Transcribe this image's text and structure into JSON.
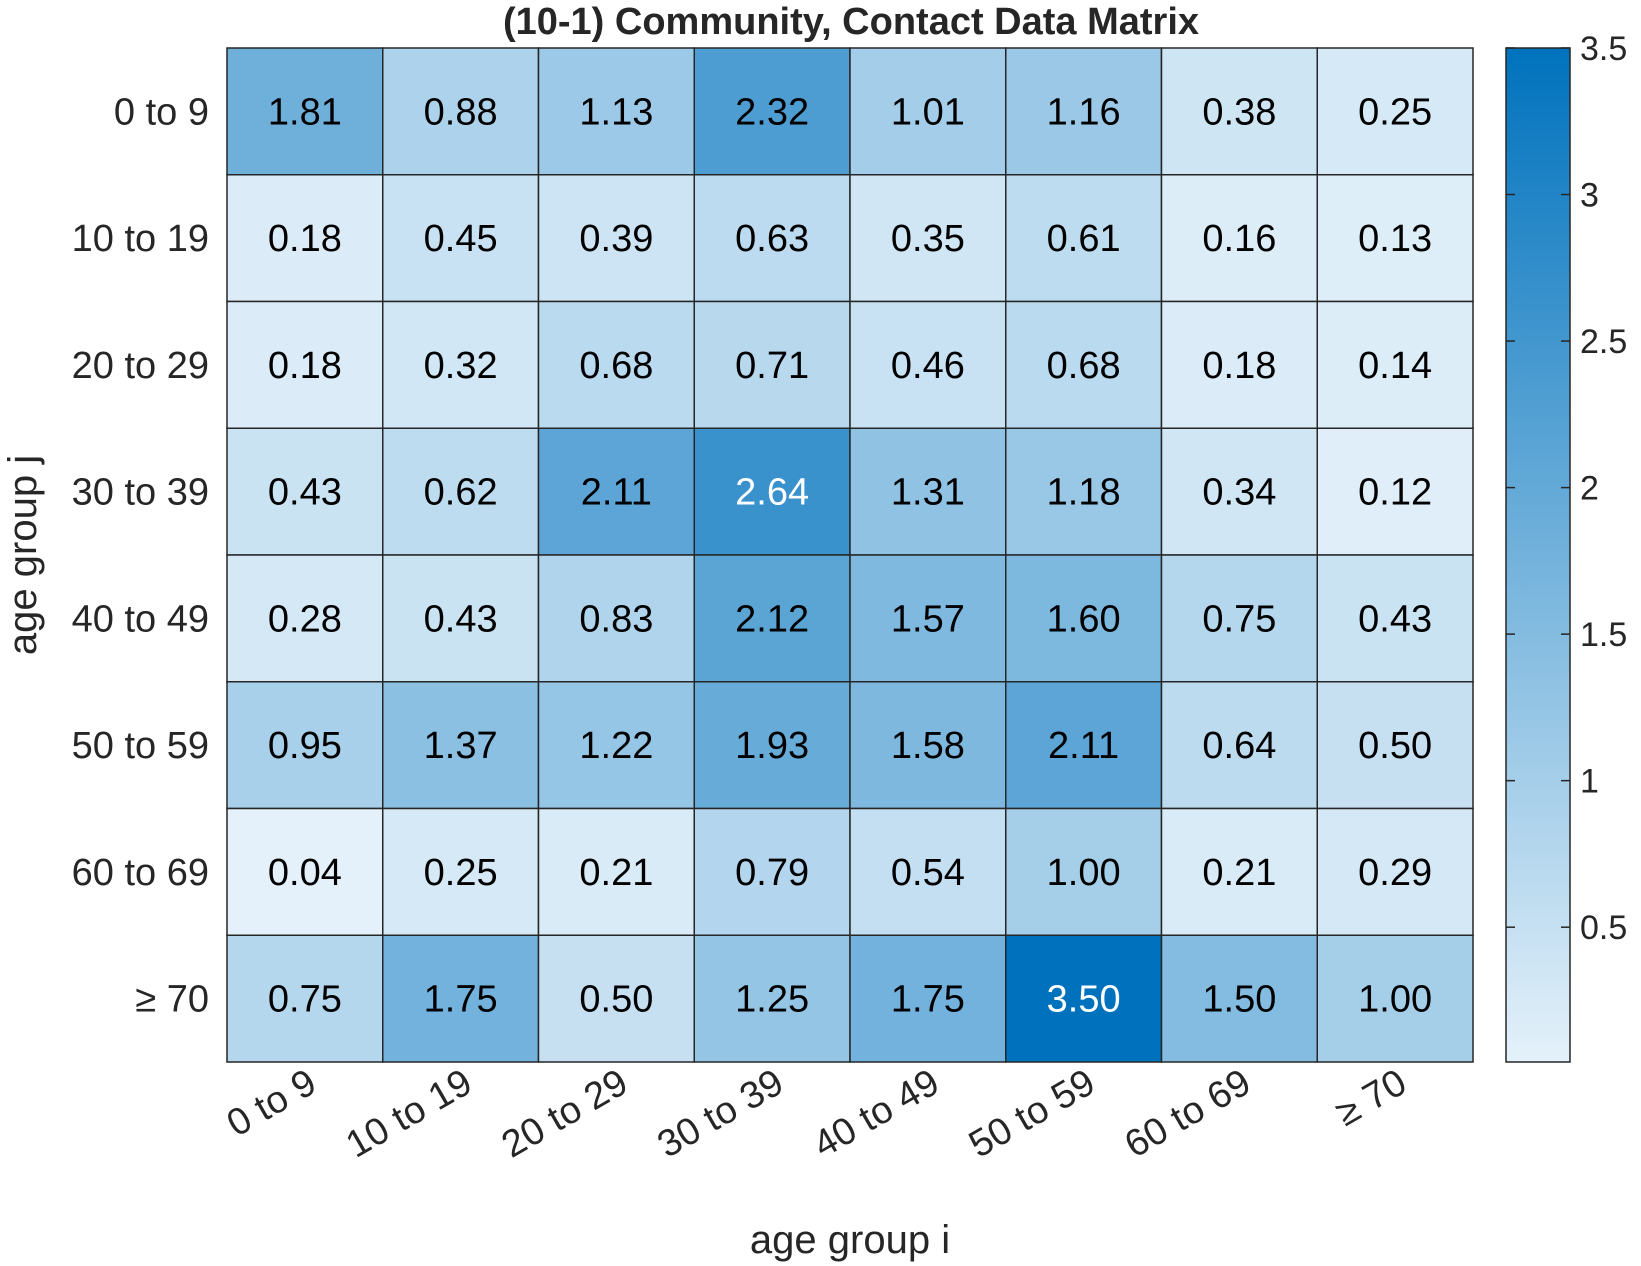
{
  "chart_data": {
    "type": "heatmap",
    "title": "(10-1) Community, Contact Data Matrix",
    "xlabel": "age group i",
    "ylabel": "age group j",
    "x_categories": [
      "0 to 9",
      "10 to 19",
      "20 to 29",
      "30 to 39",
      "40 to 49",
      "50 to 59",
      "60 to 69",
      "≥ 70"
    ],
    "y_categories": [
      "0 to 9",
      "10 to 19",
      "20 to 29",
      "30 to 39",
      "40 to 49",
      "50 to 59",
      "60 to 69",
      "≥ 70"
    ],
    "values": [
      [
        1.81,
        0.88,
        1.13,
        2.32,
        1.01,
        1.16,
        0.38,
        0.25
      ],
      [
        0.18,
        0.45,
        0.39,
        0.63,
        0.35,
        0.61,
        0.16,
        0.13
      ],
      [
        0.18,
        0.32,
        0.68,
        0.71,
        0.46,
        0.68,
        0.18,
        0.14
      ],
      [
        0.43,
        0.62,
        2.11,
        2.64,
        1.31,
        1.18,
        0.34,
        0.12
      ],
      [
        0.28,
        0.43,
        0.83,
        2.12,
        1.57,
        1.6,
        0.75,
        0.43
      ],
      [
        0.95,
        1.37,
        1.22,
        1.93,
        1.58,
        2.11,
        0.64,
        0.5
      ],
      [
        0.04,
        0.25,
        0.21,
        0.79,
        0.54,
        1.0,
        0.21,
        0.29
      ],
      [
        0.75,
        1.75,
        0.5,
        1.25,
        1.75,
        3.5,
        1.5,
        1.0
      ]
    ],
    "value_labels": [
      [
        "1.81",
        "0.88",
        "1.13",
        "2.32",
        "1.01",
        "1.16",
        "0.38",
        "0.25"
      ],
      [
        "0.18",
        "0.45",
        "0.39",
        "0.63",
        "0.35",
        "0.61",
        "0.16",
        "0.13"
      ],
      [
        "0.18",
        "0.32",
        "0.68",
        "0.71",
        "0.46",
        "0.68",
        "0.18",
        "0.14"
      ],
      [
        "0.43",
        "0.62",
        "2.11",
        "2.64",
        "1.31",
        "1.18",
        "0.34",
        "0.12"
      ],
      [
        "0.28",
        "0.43",
        "0.83",
        "2.12",
        "1.57",
        "1.60",
        "0.75",
        "0.43"
      ],
      [
        "0.95",
        "1.37",
        "1.22",
        "1.93",
        "1.58",
        "2.11",
        "0.64",
        "0.50"
      ],
      [
        "0.04",
        "0.25",
        "0.21",
        "0.79",
        "0.54",
        "1.00",
        "0.21",
        "0.29"
      ],
      [
        "0.75",
        "1.75",
        "0.50",
        "1.25",
        "1.75",
        "3.50",
        "1.50",
        "1.00"
      ]
    ],
    "colorbar": {
      "range": [
        0.04,
        3.5
      ],
      "ticks": [
        0.5,
        1,
        1.5,
        2,
        2.5,
        3,
        3.5
      ],
      "tick_labels": [
        "0.5",
        "1",
        "1.5",
        "2",
        "2.5",
        "3",
        "3.5"
      ],
      "color_low": "#e4f1fa",
      "color_high": "#0072bd"
    },
    "grid": true,
    "legend": "colorbar-right"
  }
}
